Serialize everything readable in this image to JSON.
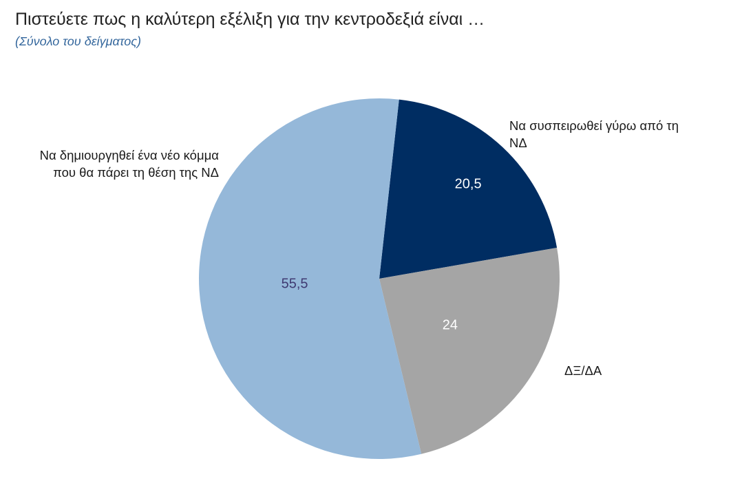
{
  "chart_data": {
    "type": "pie",
    "title": "Πιστεύετε πως η καλύτερη εξέλιξη για την κεντροδεξιά είναι …",
    "subtitle": "(Σύνολο του δείγματος)",
    "categories": [
      "Να συσπειρωθεί γύρω από τη ΝΔ",
      "ΔΞ/ΔΑ",
      "Να δημιουργηθεί ένα νέο κόμμα που θα πάρει τη θέση της ΝΔ"
    ],
    "values": [
      20.5,
      24,
      55.5
    ],
    "data_labels": [
      "20,5",
      "24",
      "55,5"
    ],
    "colors": [
      "#002D62",
      "#A5A5A5",
      "#95B8D9"
    ],
    "label_colors": [
      "#FFFFFF",
      "#FFFFFF",
      "#3F3A72"
    ]
  }
}
